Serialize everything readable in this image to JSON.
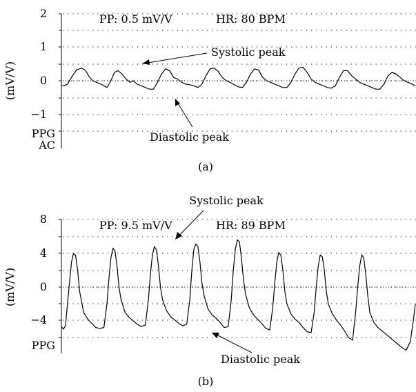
{
  "chart_data": [
    {
      "type": "line",
      "panel_label": "(a)",
      "ylabel": "(mV/V)",
      "yticks": [
        "2",
        "1",
        "0",
        "−1"
      ],
      "ylim": [
        -1.8,
        2
      ],
      "side_labels": [
        "PPG",
        "AC"
      ],
      "header_texts": [
        "PP: 0.5 mV/V",
        "HR: 80 BPM"
      ],
      "annotations": [
        "Systolic peak",
        "Diastolic peak"
      ],
      "series": [
        {
          "x": [
            0,
            0.05,
            0.12,
            0.22,
            0.3,
            0.4,
            0.48,
            0.55,
            0.62,
            0.7,
            0.78,
            0.84,
            0.9,
            0.98,
            1.05,
            1.12,
            1.2,
            1.28,
            1.36,
            1.42,
            1.5,
            1.58,
            1.66,
            1.74,
            1.82,
            1.9,
            1.98,
            2.06,
            2.14,
            2.22,
            2.3,
            2.38,
            2.46,
            2.54,
            2.62,
            2.7,
            2.78,
            2.86,
            2.94,
            3.02,
            3.1,
            3.18,
            3.26,
            3.34,
            3.42,
            3.5,
            3.58,
            3.66,
            3.74,
            3.82,
            3.9,
            3.98,
            4.06,
            4.14,
            4.22,
            4.3,
            4.38,
            4.46,
            4.54,
            4.62,
            4.7,
            4.78,
            4.86,
            4.94,
            5.02,
            5.1,
            5.18,
            5.26,
            5.34,
            5.42,
            5.5,
            5.58,
            5.66,
            5.74,
            5.82,
            5.9,
            5.98,
            6.06,
            6.14,
            6.22,
            6.3,
            6.38,
            6.46,
            6.54,
            6.62,
            6.7,
            6.78,
            6.86,
            6.94,
            7.0
          ],
          "y": [
            -0.15,
            -0.15,
            -0.1,
            0.15,
            0.32,
            0.38,
            0.3,
            0.12,
            0.0,
            -0.05,
            -0.1,
            -0.15,
            -0.2,
            0.0,
            0.25,
            0.3,
            0.2,
            0.05,
            -0.05,
            0.0,
            -0.1,
            -0.15,
            -0.2,
            -0.25,
            -0.25,
            -0.05,
            0.2,
            0.35,
            0.3,
            0.1,
            0.05,
            -0.05,
            -0.1,
            -0.12,
            -0.15,
            -0.2,
            -0.1,
            0.15,
            0.35,
            0.38,
            0.28,
            0.1,
            0.0,
            -0.05,
            -0.12,
            -0.18,
            -0.2,
            -0.05,
            0.2,
            0.35,
            0.32,
            0.1,
            0.0,
            -0.05,
            -0.1,
            -0.15,
            -0.2,
            -0.2,
            -0.05,
            0.2,
            0.38,
            0.4,
            0.25,
            0.05,
            -0.05,
            -0.1,
            -0.15,
            -0.2,
            -0.22,
            -0.15,
            0.1,
            0.3,
            0.3,
            0.15,
            0.05,
            -0.05,
            -0.1,
            -0.15,
            -0.2,
            -0.25,
            -0.25,
            -0.1,
            0.15,
            0.25,
            0.2,
            0.1,
            0.0,
            -0.05,
            -0.1,
            -0.15
          ],
          "color": "#000000"
        }
      ]
    },
    {
      "type": "line",
      "panel_label": "(b)",
      "ylabel": "(mV/V)",
      "yticks": [
        "8",
        "4",
        "0",
        "−4"
      ],
      "ylim": [
        -7.6,
        8
      ],
      "side_labels": [
        "PPG"
      ],
      "header_texts": [
        "PP: 9.5 mV/V",
        "HR: 89 BPM"
      ],
      "annotations": [
        "Systolic peak",
        "Diastolic peak"
      ],
      "series": [
        {
          "x": [
            0,
            0.04,
            0.08,
            0.12,
            0.16,
            0.2,
            0.24,
            0.28,
            0.32,
            0.36,
            0.44,
            0.52,
            0.6,
            0.68,
            0.76,
            0.84,
            0.9,
            0.94,
            0.98,
            1.02,
            1.06,
            1.1,
            1.14,
            1.18,
            1.26,
            1.34,
            1.42,
            1.5,
            1.58,
            1.66,
            1.72,
            1.76,
            1.8,
            1.84,
            1.88,
            1.92,
            1.96,
            2.0,
            2.08,
            2.16,
            2.24,
            2.32,
            2.4,
            2.48,
            2.54,
            2.58,
            2.62,
            2.66,
            2.7,
            2.74,
            2.78,
            2.82,
            2.9,
            2.98,
            3.06,
            3.14,
            3.22,
            3.3,
            3.36,
            3.4,
            3.44,
            3.48,
            3.52,
            3.56,
            3.6,
            3.64,
            3.72,
            3.8,
            3.88,
            3.96,
            4.04,
            4.12,
            4.18,
            4.22,
            4.26,
            4.3,
            4.34,
            4.38,
            4.42,
            4.46,
            4.54,
            4.62,
            4.7,
            4.78,
            4.86,
            4.94,
            5.0,
            5.04,
            5.08,
            5.12,
            5.16,
            5.2,
            5.24,
            5.28,
            5.36,
            5.44,
            5.52,
            5.6,
            5.68,
            5.76,
            5.82,
            5.86,
            5.9,
            5.94,
            5.98,
            6.02,
            6.06,
            6.1,
            6.18,
            6.26,
            6.34,
            6.42,
            6.5,
            6.58,
            6.66,
            6.74,
            6.82,
            6.9,
            6.96,
            7.0
          ],
          "y": [
            -4.7,
            -5.0,
            -4.6,
            -2.0,
            0.5,
            3.0,
            4.0,
            3.8,
            2.0,
            -0.5,
            -3.0,
            -3.8,
            -4.3,
            -4.8,
            -4.9,
            -4.8,
            -2.0,
            1.0,
            3.5,
            4.6,
            4.3,
            2.5,
            0.0,
            -1.5,
            -3.0,
            -3.6,
            -4.0,
            -4.4,
            -4.7,
            -4.5,
            -1.5,
            1.5,
            3.8,
            4.8,
            4.4,
            2.5,
            0.0,
            -1.5,
            -2.8,
            -3.5,
            -3.9,
            -4.3,
            -4.6,
            -4.4,
            -1.5,
            2.0,
            4.5,
            5.1,
            4.8,
            3.0,
            0.5,
            -1.0,
            -2.6,
            -3.3,
            -3.7,
            -4.2,
            -4.8,
            -4.7,
            -1.5,
            2.0,
            4.5,
            5.6,
            5.4,
            3.5,
            1.0,
            -0.8,
            -2.5,
            -3.3,
            -3.8,
            -4.3,
            -4.9,
            -5.1,
            -2.5,
            0.5,
            3.0,
            4.1,
            3.8,
            2.0,
            -0.5,
            -2.0,
            -3.2,
            -3.8,
            -4.2,
            -4.8,
            -5.3,
            -5.4,
            -3.0,
            0.0,
            2.5,
            3.8,
            3.6,
            2.0,
            -0.5,
            -2.0,
            -3.2,
            -3.9,
            -4.5,
            -5.2,
            -6.0,
            -6.3,
            -3.0,
            0.0,
            2.5,
            3.8,
            3.5,
            1.5,
            -1.0,
            -3.0,
            -4.2,
            -4.8,
            -5.2,
            -5.6,
            -6.0,
            -6.4,
            -6.8,
            -7.2,
            -7.5,
            -6.5,
            -4.0,
            -2.0
          ],
          "color": "#000000"
        }
      ]
    }
  ]
}
